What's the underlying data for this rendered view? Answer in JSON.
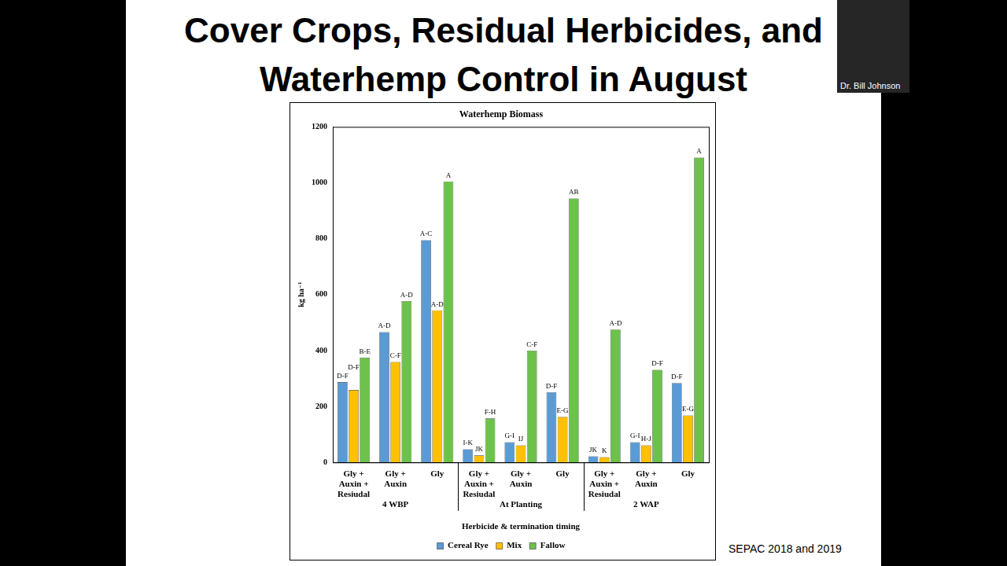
{
  "title": "Cover Crops, Residual Herbicides, and Waterhemp Control in August",
  "source": "SEPAC 2018 and 2019",
  "presenter": "Dr. Bill Johnson",
  "chart_data": {
    "type": "bar",
    "title": "Waterhemp Biomass",
    "y_label": "kg ha⁻¹",
    "x_label": "Herbicide & termination timing",
    "categories": [
      "Gly + Auxin + Resiudal",
      "Gly + Auxin",
      "Gly",
      "Gly + Auxin + Resiudal",
      "Gly + Auxin",
      "Gly",
      "Gly + Auxin + Resiudal",
      "Gly + Auxin",
      "Gly"
    ],
    "groups": [
      "4 WBP",
      "At Planting",
      "2 WAP"
    ],
    "series": [
      {
        "name": "Cereal Rye",
        "color": "#5b9bd5",
        "values": [
          287,
          466,
          795,
          47,
          72,
          251,
          22,
          72,
          284
        ],
        "letters": [
          "D-F",
          "A-D",
          "A-C",
          "I-K",
          "G-I",
          "D-F",
          "JK",
          "G-I",
          "D-F"
        ]
      },
      {
        "name": "Mix",
        "color": "#ffc000",
        "values": [
          259,
          359,
          544,
          25,
          61,
          163,
          19,
          61,
          168
        ],
        "letters": [
          "D-F",
          "C-F",
          "A-D",
          "JK",
          "IJ",
          "E-G",
          "K",
          "H-J",
          "E-G"
        ]
      },
      {
        "name": "Fallow",
        "color": "#6cc24a",
        "values": [
          375,
          577,
          1005,
          157,
          400,
          944,
          475,
          331,
          1090
        ],
        "letters": [
          "B-E",
          "A-D",
          "A",
          "F-H",
          "C-F",
          "AB",
          "A-D",
          "D-F",
          "A"
        ]
      }
    ],
    "ylim": [
      0,
      1200
    ],
    "yticks": [
      0,
      200,
      400,
      600,
      800,
      1000,
      1200
    ],
    "grid": false,
    "legend": "bottom"
  }
}
